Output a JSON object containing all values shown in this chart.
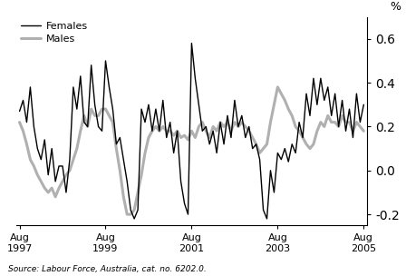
{
  "ylabel": "%",
  "source_text": "Source: Labour Force, Australia, cat. no. 6202.0.",
  "ylim": [
    -0.25,
    0.7
  ],
  "yticks": [
    -0.2,
    0.0,
    0.2,
    0.4,
    0.6
  ],
  "females_color": "#000000",
  "males_color": "#b0b0b0",
  "females_linewidth": 1.0,
  "males_linewidth": 2.2,
  "legend_females": "Females",
  "legend_males": "Males",
  "x_tick_labels": [
    "Aug\n1997",
    "Aug\n1999",
    "Aug\n2001",
    "Aug\n2003",
    "Aug\n2005"
  ],
  "x_tick_positions": [
    0,
    24,
    48,
    72,
    96
  ],
  "n_months": 97,
  "females": [
    0.27,
    0.32,
    0.22,
    0.38,
    0.2,
    0.1,
    0.05,
    0.14,
    -0.02,
    0.1,
    -0.05,
    0.02,
    0.02,
    -0.1,
    0.05,
    0.38,
    0.28,
    0.43,
    0.22,
    0.2,
    0.48,
    0.3,
    0.2,
    0.18,
    0.5,
    0.38,
    0.28,
    0.12,
    0.15,
    0.05,
    -0.05,
    -0.18,
    -0.22,
    -0.18,
    0.28,
    0.22,
    0.3,
    0.18,
    0.28,
    0.18,
    0.32,
    0.15,
    0.22,
    0.08,
    0.18,
    -0.05,
    -0.15,
    -0.2,
    0.58,
    0.42,
    0.3,
    0.18,
    0.2,
    0.12,
    0.18,
    0.08,
    0.22,
    0.12,
    0.25,
    0.15,
    0.32,
    0.2,
    0.25,
    0.15,
    0.2,
    0.1,
    0.12,
    0.05,
    -0.18,
    -0.22,
    0.0,
    -0.1,
    0.08,
    0.05,
    0.1,
    0.04,
    0.12,
    0.08,
    0.22,
    0.15,
    0.35,
    0.25,
    0.42,
    0.3,
    0.42,
    0.32,
    0.38,
    0.25,
    0.35,
    0.2,
    0.32,
    0.18,
    0.28,
    0.15,
    0.35,
    0.22,
    0.3
  ],
  "males": [
    0.22,
    0.18,
    0.12,
    0.05,
    0.02,
    -0.02,
    -0.05,
    -0.08,
    -0.1,
    -0.08,
    -0.12,
    -0.08,
    -0.05,
    -0.02,
    0.0,
    0.05,
    0.1,
    0.18,
    0.25,
    0.2,
    0.28,
    0.25,
    0.25,
    0.28,
    0.28,
    0.25,
    0.22,
    0.1,
    0.0,
    -0.12,
    -0.2,
    -0.2,
    -0.18,
    -0.1,
    -0.02,
    0.08,
    0.15,
    0.18,
    0.2,
    0.18,
    0.2,
    0.18,
    0.18,
    0.16,
    0.18,
    0.15,
    0.16,
    0.14,
    0.18,
    0.15,
    0.2,
    0.22,
    0.18,
    0.15,
    0.2,
    0.18,
    0.22,
    0.2,
    0.22,
    0.18,
    0.22,
    0.2,
    0.22,
    0.2,
    0.18,
    0.15,
    0.12,
    0.08,
    0.1,
    0.12,
    0.22,
    0.3,
    0.38,
    0.35,
    0.32,
    0.28,
    0.25,
    0.2,
    0.18,
    0.15,
    0.12,
    0.1,
    0.12,
    0.18,
    0.22,
    0.2,
    0.25,
    0.22,
    0.22,
    0.2,
    0.25,
    0.22,
    0.22,
    0.18,
    0.22,
    0.2,
    0.18
  ]
}
